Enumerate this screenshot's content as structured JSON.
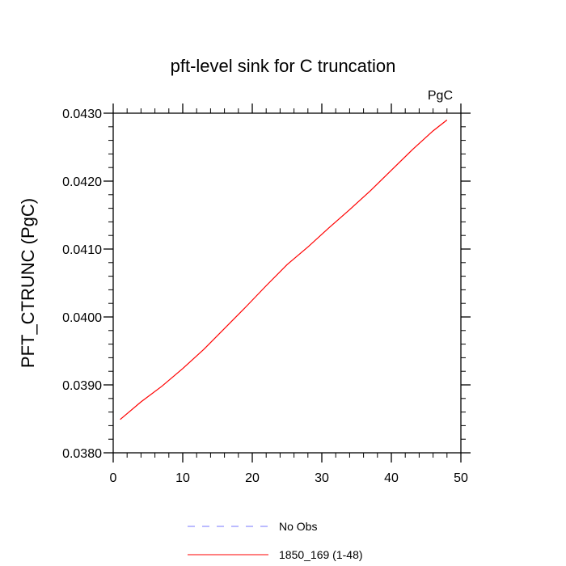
{
  "chart_data": {
    "type": "line",
    "title": "pft-level sink for C truncation",
    "units_label": "PgC",
    "xlabel": "",
    "ylabel": "PFT_CTRUNC  (PgC)",
    "xlim": [
      0,
      50
    ],
    "ylim": [
      0.038,
      0.043
    ],
    "x_ticks": [
      0,
      10,
      20,
      30,
      40,
      50
    ],
    "x_tick_labels": [
      "0",
      "10",
      "20",
      "30",
      "40",
      "50"
    ],
    "y_ticks": [
      0.038,
      0.039,
      0.04,
      0.041,
      0.042,
      0.043
    ],
    "y_tick_labels": [
      "0.0380",
      "0.0390",
      "0.0400",
      "0.0410",
      "0.0420",
      "0.0430"
    ],
    "grid": false,
    "legend_position": "bottom",
    "series": [
      {
        "name": "No Obs",
        "color": "#7777ff",
        "dash": "dashed",
        "x": [],
        "y": []
      },
      {
        "name": "1850_169 (1-48)",
        "color": "#ff0000",
        "dash": "solid",
        "x": [
          1,
          4,
          7,
          10,
          13,
          16,
          19,
          22,
          25,
          28,
          31,
          34,
          37,
          40,
          43,
          46,
          48
        ],
        "y": [
          0.03849,
          0.03875,
          0.03898,
          0.03924,
          0.03952,
          0.03983,
          0.04014,
          0.04046,
          0.04077,
          0.04103,
          0.04131,
          0.04158,
          0.04186,
          0.04216,
          0.04246,
          0.04274,
          0.0429
        ]
      }
    ]
  }
}
